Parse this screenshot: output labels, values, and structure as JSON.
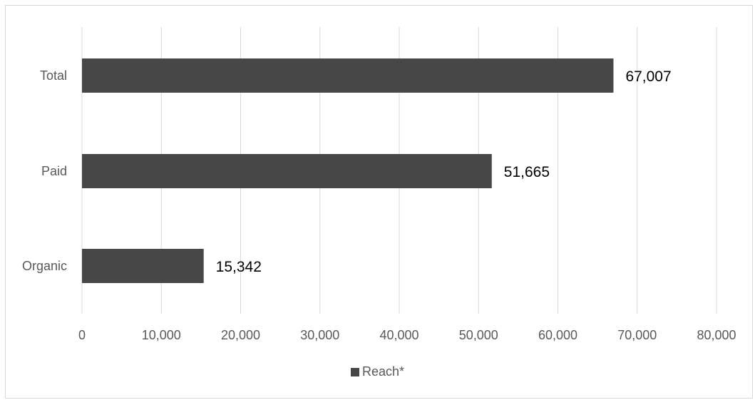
{
  "chart_data": {
    "type": "bar",
    "orientation": "horizontal",
    "categories": [
      "Total",
      "Paid",
      "Organic"
    ],
    "series": [
      {
        "name": "Reach*",
        "values": [
          67007,
          51665,
          15342
        ],
        "data_labels": [
          "67,007",
          "51,665",
          "15,342"
        ],
        "color": "#474747"
      }
    ],
    "x_ticks": [
      0,
      10000,
      20000,
      30000,
      40000,
      50000,
      60000,
      70000,
      80000
    ],
    "x_tick_labels": [
      "0",
      "10,000",
      "20,000",
      "30,000",
      "40,000",
      "50,000",
      "60,000",
      "70,000",
      "80,000"
    ],
    "xlim": [
      0,
      80000
    ],
    "grid": true,
    "legend_position": "bottom",
    "colors": {
      "bar": "#474747",
      "grid": "#d9d9d9",
      "tick_text": "#595959",
      "data_label_text": "#000000"
    }
  }
}
